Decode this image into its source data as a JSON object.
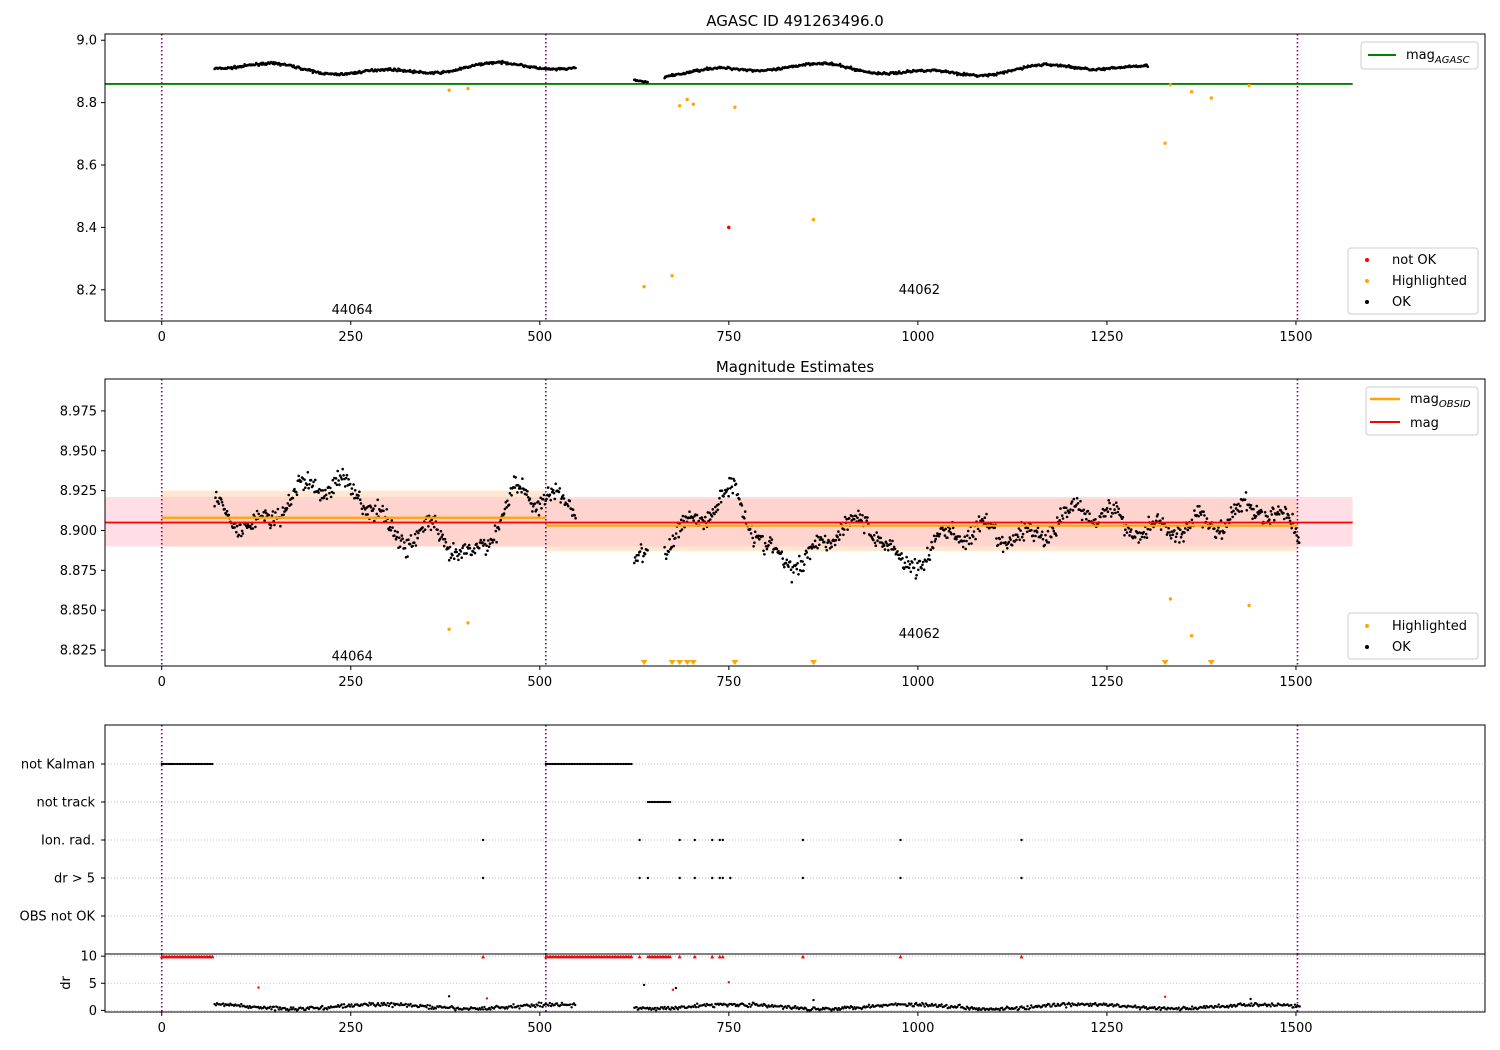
{
  "figure": {
    "colors": {
      "ok": "#000000",
      "not_ok": "#ff0000",
      "highlighted": "#ffa500",
      "mag_agasc": "#008000",
      "mag_obsid": "#ffa500",
      "mag": "#ff0000",
      "obs_boundary": "#800080",
      "band_obsid": "#ffdab9",
      "band_mag": "#ffc0cb"
    }
  },
  "chart_data": [
    {
      "type": "scatter",
      "title": "AGASC ID 491263496.0",
      "xlabel": "",
      "ylabel": "",
      "xlim": [
        -75,
        1750
      ],
      "ylim": [
        8.1,
        9.02
      ],
      "xticks": [
        0,
        250,
        500,
        750,
        1000,
        1250,
        1500
      ],
      "xtick_labels": [
        "0",
        "250",
        "500",
        "750",
        "1000",
        "1250",
        "1500"
      ],
      "yticks": [
        8.2,
        8.4,
        8.6,
        8.8,
        9.0
      ],
      "ytick_labels": [
        "8.2",
        "8.4",
        "8.6",
        "8.8",
        "9.0"
      ],
      "obs_boundaries": [
        0,
        508,
        1502
      ],
      "obs_labels": [
        {
          "text": "44064",
          "x": 252,
          "y": 8.135
        },
        {
          "text": "44062",
          "x": 1002,
          "y": 8.2
        }
      ],
      "lines": [
        {
          "name": "mag_AGASC",
          "y": 8.86,
          "x": [
            -75,
            1575
          ]
        }
      ],
      "series": [
        {
          "name": "OK",
          "segments": [
            [
              70,
              548,
              8.908,
              0.02
            ],
            [
              625,
              643,
              8.885,
              0.012
            ],
            [
              665,
              1305,
              8.905,
              0.022
            ]
          ]
        },
        {
          "name": "Highlighted",
          "x": [
            380,
            405,
            638,
            675,
            685,
            695,
            703,
            758,
            862,
            1327,
            1334,
            1362,
            1388,
            1438
          ],
          "y": [
            8.84,
            8.845,
            8.21,
            8.245,
            8.79,
            8.81,
            8.795,
            8.785,
            8.425,
            8.67,
            8.857,
            8.835,
            8.815,
            8.855
          ]
        },
        {
          "name": "not OK",
          "x": [
            750
          ],
          "y": [
            8.4
          ]
        }
      ],
      "legend_lines": [
        {
          "label_main": "mag",
          "label_sub": "AGASC"
        }
      ],
      "legend_points": [
        {
          "label": "not OK"
        },
        {
          "label": "Highlighted"
        },
        {
          "label": "OK"
        }
      ],
      "legend_placement": [
        "upper right",
        "lower right"
      ]
    },
    {
      "type": "scatter",
      "title": "Magnitude Estimates",
      "xlabel": "",
      "ylabel": "",
      "xlim": [
        -75,
        1750
      ],
      "ylim": [
        8.815,
        8.995
      ],
      "xticks": [
        0,
        250,
        500,
        750,
        1000,
        1250,
        1500
      ],
      "xtick_labels": [
        "0",
        "250",
        "500",
        "750",
        "1000",
        "1250",
        "1500"
      ],
      "yticks": [
        8.825,
        8.85,
        8.875,
        8.9,
        8.925,
        8.95,
        8.975
      ],
      "ytick_labels": [
        "8.825",
        "8.850",
        "8.875",
        "8.900",
        "8.925",
        "8.950",
        "8.975"
      ],
      "obs_boundaries": [
        0,
        508,
        1502
      ],
      "obs_labels": [
        {
          "text": "44064",
          "x": 252,
          "y": 8.821
        },
        {
          "text": "44062",
          "x": 1002,
          "y": 8.835
        }
      ],
      "bands": [
        {
          "name": "mag_OBSID 44064",
          "x0": 0,
          "x1": 508,
          "y0": 8.89,
          "y1": 8.925
        },
        {
          "name": "mag_OBSID 44062",
          "x0": 508,
          "x1": 1502,
          "y0": 8.887,
          "y1": 8.92
        },
        {
          "name": "mag",
          "x0": -75,
          "x1": 1575,
          "y0": 8.89,
          "y1": 8.921
        }
      ],
      "lines": [
        {
          "name": "mag_OBSID 44064",
          "y": 8.908,
          "x": [
            0,
            508
          ]
        },
        {
          "name": "mag_OBSID 44062",
          "y": 8.903,
          "x": [
            508,
            1502
          ]
        },
        {
          "name": "mag",
          "y": 8.905,
          "x": [
            -75,
            1575
          ]
        }
      ],
      "series": [
        {
          "name": "OK",
          "curve": [
            [
              70,
              8.915
            ],
            [
              120,
              8.9
            ],
            [
              200,
              8.93
            ],
            [
              260,
              8.925
            ],
            [
              310,
              8.895
            ],
            [
              360,
              8.9
            ],
            [
              410,
              8.88
            ],
            [
              470,
              8.925
            ],
            [
              548,
              8.915
            ],
            [
              625,
              8.88
            ],
            [
              643,
              8.88
            ],
            [
              665,
              8.89
            ],
            [
              700,
              8.905
            ],
            [
              760,
              8.925
            ],
            [
              800,
              8.885
            ],
            [
              850,
              8.88
            ],
            [
              900,
              8.905
            ],
            [
              950,
              8.9
            ],
            [
              980,
              8.875
            ],
            [
              1050,
              8.9
            ],
            [
              1150,
              8.895
            ],
            [
              1220,
              8.915
            ],
            [
              1300,
              8.9
            ],
            [
              1400,
              8.905
            ],
            [
              1450,
              8.915
            ],
            [
              1505,
              8.9
            ]
          ],
          "scatter": 0.013
        },
        {
          "name": "Highlighted",
          "x": [
            380,
            405,
            1334,
            1362,
            1438
          ],
          "y": [
            8.838,
            8.842,
            8.857,
            8.834,
            8.853
          ]
        },
        {
          "name": "Highlighted (below range)",
          "x": [
            638,
            675,
            685,
            695,
            703,
            758,
            862,
            1327,
            1388
          ],
          "y": [
            8.817,
            8.817,
            8.817,
            8.817,
            8.817,
            8.817,
            8.817,
            8.817,
            8.817
          ]
        }
      ],
      "legend_lines": [
        {
          "label_main": "mag",
          "label_sub": "OBSID"
        },
        {
          "label_main": "mag",
          "label_sub": ""
        }
      ],
      "legend_points": [
        {
          "label": "Highlighted"
        },
        {
          "label": "OK"
        }
      ],
      "legend_placement": [
        "upper right",
        "lower right"
      ]
    },
    {
      "type": "scatter",
      "title": "",
      "xlabel": "",
      "ylabel": "",
      "xlim": [
        -75,
        1750
      ],
      "categories": [
        "not Kalman",
        "not track",
        "Ion. rad.",
        "dr > 5",
        "OBS not OK"
      ],
      "obs_boundaries": [
        0,
        508,
        1502
      ],
      "flags": [
        {
          "name": "not Kalman",
          "ranges": [
            [
              0,
              68
            ],
            [
              508,
              623
            ]
          ],
          "points": []
        },
        {
          "name": "not track",
          "ranges": [
            [
              643,
              673
            ]
          ],
          "points": []
        },
        {
          "name": "Ion. rad.",
          "ranges": [],
          "points": [
            425,
            632,
            685,
            705,
            728,
            738,
            742,
            848,
            977,
            1137
          ]
        },
        {
          "name": "dr > 5",
          "ranges": [],
          "points": [
            425,
            632,
            643,
            685,
            705,
            728,
            738,
            742,
            752,
            848,
            977,
            1137
          ]
        },
        {
          "name": "OBS not OK",
          "ranges": [],
          "points": []
        }
      ]
    },
    {
      "type": "scatter",
      "title": "",
      "xlabel": "",
      "ylabel": "dr",
      "xlim": [
        -75,
        1750
      ],
      "ylim": [
        -0.3,
        10.4
      ],
      "xticks": [
        0,
        250,
        500,
        750,
        1000,
        1250,
        1500
      ],
      "xtick_labels": [
        "0",
        "250",
        "500",
        "750",
        "1000",
        "1250",
        "1500"
      ],
      "yticks": [
        0,
        5,
        10
      ],
      "ytick_labels": [
        "0",
        "5",
        "10"
      ],
      "obs_boundaries": [
        0,
        508,
        1502
      ],
      "series": [
        {
          "name": "dr OK",
          "segments": [
            [
              70,
              548
            ],
            [
              625,
              1505
            ]
          ],
          "base": 0.7,
          "amplitude": 0.8
        },
        {
          "name": "dr flagged (clipped at 10)",
          "ranges": [
            [
              0,
              68
            ],
            [
              508,
              623
            ],
            [
              643,
              673
            ]
          ],
          "x": [
            425,
            632,
            685,
            705,
            728,
            738,
            742,
            848,
            977,
            1137
          ],
          "y": 9.9
        },
        {
          "name": "dr outliers",
          "x": [
            128,
            380,
            430,
            638,
            676,
            680,
            750,
            862,
            1327,
            1440
          ],
          "y": [
            4.2,
            2.6,
            2.2,
            4.7,
            3.8,
            4.1,
            5.2,
            1.9,
            2.5,
            2.1
          ]
        }
      ]
    }
  ]
}
